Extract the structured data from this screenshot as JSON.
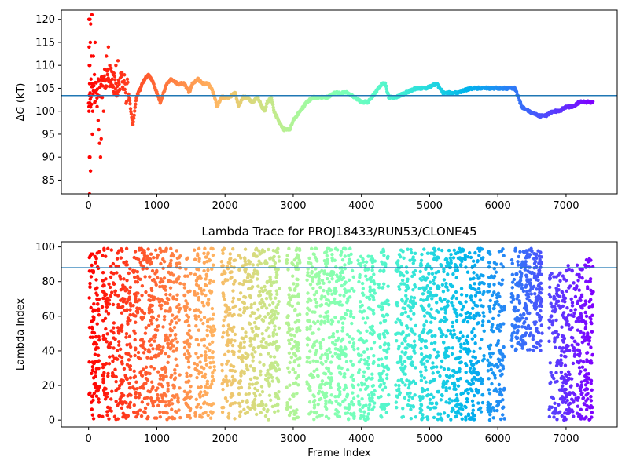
{
  "chart_data": [
    {
      "type": "scatter",
      "title": "",
      "xlabel": "",
      "ylabel": "ΔG (kT)",
      "ylabel_parts": {
        "delta": "Δ",
        "var": "G",
        "unit": " (kT)"
      },
      "xlim": [
        -400,
        7750
      ],
      "ylim": [
        82,
        122
      ],
      "xticks": [
        0,
        1000,
        2000,
        3000,
        4000,
        5000,
        6000,
        7000
      ],
      "yticks": [
        85,
        90,
        95,
        100,
        105,
        110,
        115,
        120
      ],
      "hline": 103.4,
      "hline_color": "#1f77b4",
      "colormap": "rainbow",
      "x_max": 7400,
      "series": [
        {
          "early_scatter": [
            [
              5,
              120
            ],
            [
              12,
              120
            ],
            [
              20,
              120
            ],
            [
              8,
              114
            ],
            [
              30,
              119
            ],
            [
              48,
              121
            ],
            [
              25,
              115
            ],
            [
              18,
              110
            ],
            [
              10,
              110
            ],
            [
              40,
              112
            ],
            [
              15,
              106
            ],
            [
              22,
              104
            ],
            [
              35,
              107
            ],
            [
              6,
              100
            ],
            [
              12,
              90
            ],
            [
              20,
              90
            ],
            [
              28,
              87
            ],
            [
              14,
              82
            ],
            [
              55,
              95
            ],
            [
              60,
              100
            ],
            [
              70,
              112
            ],
            [
              85,
              108
            ],
            [
              95,
              115
            ],
            [
              110,
              104
            ],
            [
              125,
              101
            ],
            [
              140,
              98
            ],
            [
              150,
              96
            ],
            [
              160,
              93
            ],
            [
              175,
              90
            ],
            [
              185,
              94
            ],
            [
              200,
              103
            ],
            [
              220,
              100
            ],
            [
              240,
              105
            ],
            [
              260,
              112
            ],
            [
              290,
              114
            ],
            [
              310,
              110
            ],
            [
              330,
              106
            ],
            [
              360,
              108
            ],
            [
              400,
              110
            ],
            [
              430,
              111
            ]
          ],
          "points": [
            [
              0,
              103
            ],
            [
              100,
              104
            ],
            [
              200,
              106
            ],
            [
              300,
              108
            ],
            [
              400,
              105
            ],
            [
              500,
              107
            ],
            [
              550,
              104
            ],
            [
              580,
              105
            ],
            [
              620,
              100
            ],
            [
              650,
              97
            ],
            [
              700,
              103
            ],
            [
              760,
              105
            ],
            [
              820,
              107
            ],
            [
              880,
              108
            ],
            [
              950,
              106
            ],
            [
              1000,
              104
            ],
            [
              1050,
              102
            ],
            [
              1100,
              104
            ],
            [
              1150,
              106
            ],
            [
              1200,
              107
            ],
            [
              1300,
              106
            ],
            [
              1400,
              106
            ],
            [
              1480,
              104
            ],
            [
              1520,
              106
            ],
            [
              1600,
              107
            ],
            [
              1680,
              106
            ],
            [
              1750,
              106
            ],
            [
              1800,
              105
            ],
            [
              1850,
              103
            ],
            [
              1880,
              101
            ],
            [
              1950,
              103
            ],
            [
              2050,
              103
            ],
            [
              2150,
              104
            ],
            [
              2200,
              101
            ],
            [
              2260,
              103
            ],
            [
              2330,
              103
            ],
            [
              2400,
              102
            ],
            [
              2480,
              103
            ],
            [
              2540,
              101
            ],
            [
              2580,
              100
            ],
            [
              2620,
              102
            ],
            [
              2680,
              103
            ],
            [
              2720,
              100
            ],
            [
              2780,
              98
            ],
            [
              2860,
              96
            ],
            [
              2950,
              96
            ],
            [
              3000,
              98
            ],
            [
              3100,
              100
            ],
            [
              3200,
              102
            ],
            [
              3300,
              103
            ],
            [
              3400,
              103
            ],
            [
              3500,
              103
            ],
            [
              3600,
              104
            ],
            [
              3700,
              104
            ],
            [
              3800,
              104
            ],
            [
              3900,
              103
            ],
            [
              4000,
              102
            ],
            [
              4100,
              102
            ],
            [
              4200,
              104
            ],
            [
              4300,
              106
            ],
            [
              4350,
              106
            ],
            [
              4400,
              103
            ],
            [
              4500,
              103
            ],
            [
              4650,
              104
            ],
            [
              4800,
              105
            ],
            [
              4950,
              105
            ],
            [
              5100,
              106
            ],
            [
              5200,
              104
            ],
            [
              5400,
              104
            ],
            [
              5600,
              105
            ],
            [
              5800,
              105
            ],
            [
              6000,
              105
            ],
            [
              6100,
              105
            ],
            [
              6250,
              105
            ],
            [
              6300,
              103
            ],
            [
              6350,
              101
            ],
            [
              6450,
              100
            ],
            [
              6600,
              99
            ],
            [
              6700,
              99
            ],
            [
              6800,
              100
            ],
            [
              6900,
              100
            ],
            [
              7000,
              101
            ],
            [
              7100,
              101
            ],
            [
              7200,
              102
            ],
            [
              7300,
              102
            ],
            [
              7400,
              102
            ]
          ]
        }
      ]
    },
    {
      "type": "scatter",
      "title": "Lambda Trace for PROJ18433/RUN53/CLONE45",
      "xlabel": "Frame Index",
      "ylabel": "Lambda Index",
      "xlim": [
        -400,
        7750
      ],
      "ylim": [
        -4,
        103
      ],
      "xticks": [
        0,
        1000,
        2000,
        3000,
        4000,
        5000,
        6000,
        7000
      ],
      "yticks": [
        0,
        20,
        40,
        60,
        80,
        100
      ],
      "hline": 88,
      "hline_color": "#1f77b4",
      "colormap": "rainbow",
      "x_max": 7400,
      "bands": [
        [
          0,
          160
        ],
        [
          200,
          620
        ],
        [
          650,
          1000
        ],
        [
          1000,
          1350
        ],
        [
          1400,
          1500
        ],
        [
          1550,
          1850
        ],
        [
          1950,
          2150
        ],
        [
          2200,
          2700
        ],
        [
          2700,
          2800
        ],
        [
          2900,
          3100
        ],
        [
          3200,
          3500
        ],
        [
          3500,
          3900
        ],
        [
          3950,
          4200
        ],
        [
          4250,
          4400
        ],
        [
          4500,
          4800
        ],
        [
          4850,
          5100
        ],
        [
          5100,
          5500
        ],
        [
          5500,
          5800
        ],
        [
          5850,
          6100
        ],
        [
          6200,
          6650
        ],
        [
          6750,
          7000
        ],
        [
          7000,
          7300
        ],
        [
          7300,
          7400
        ]
      ],
      "band_coverage": [
        [
          0,
          100
        ],
        [
          0,
          100
        ],
        [
          0,
          100
        ],
        [
          0,
          100
        ],
        [
          0,
          95
        ],
        [
          0,
          100
        ],
        [
          0,
          100
        ],
        [
          0,
          100
        ],
        [
          0,
          100
        ],
        [
          0,
          100
        ],
        [
          0,
          100
        ],
        [
          0,
          100
        ],
        [
          0,
          95
        ],
        [
          0,
          100
        ],
        [
          0,
          100
        ],
        [
          0,
          100
        ],
        [
          0,
          100
        ],
        [
          0,
          100
        ],
        [
          0,
          100
        ],
        [
          40,
          100
        ],
        [
          0,
          85
        ],
        [
          0,
          90
        ],
        [
          0,
          100
        ]
      ]
    }
  ]
}
